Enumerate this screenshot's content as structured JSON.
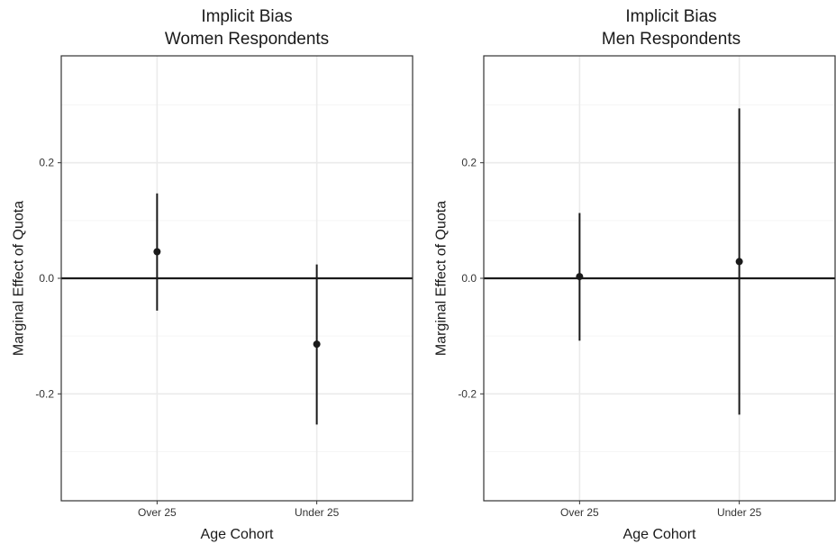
{
  "chart_data": [
    {
      "type": "scatter",
      "title_lines": [
        "Implicit Bias",
        "Women Respondents"
      ],
      "xlabel": "Age Cohort",
      "ylabel": "Marginal Effect of Quota",
      "categories": [
        "Over 25",
        "Under 25"
      ],
      "y_ticks": [
        -0.2,
        0.0,
        0.2
      ],
      "y_tick_labels": [
        "-0.2",
        "0.0",
        "0.2"
      ],
      "ylim": [
        -0.385,
        0.385
      ],
      "grid": true,
      "reference_line": 0.0,
      "points": [
        {
          "x": "Over 25",
          "y": 0.046,
          "lower": -0.056,
          "upper": 0.147
        },
        {
          "x": "Under 25",
          "y": -0.114,
          "lower": -0.253,
          "upper": 0.024
        }
      ]
    },
    {
      "type": "scatter",
      "title_lines": [
        "Implicit Bias",
        "Men Respondents"
      ],
      "xlabel": "Age Cohort",
      "ylabel": "Marginal Effect of Quota",
      "categories": [
        "Over 25",
        "Under 25"
      ],
      "y_ticks": [
        -0.2,
        0.0,
        0.2
      ],
      "y_tick_labels": [
        "-0.2",
        "0.0",
        "0.2"
      ],
      "ylim": [
        -0.385,
        0.385
      ],
      "grid": true,
      "reference_line": 0.0,
      "points": [
        {
          "x": "Over 25",
          "y": 0.003,
          "lower": -0.108,
          "upper": 0.113
        },
        {
          "x": "Under 25",
          "y": 0.029,
          "lower": -0.236,
          "upper": 0.294
        }
      ]
    }
  ],
  "colors": {
    "point": "#1a1a1a",
    "errorbar": "#1a1a1a",
    "refline": "#1a1a1a",
    "grid_major": "#ebebeb",
    "grid_minor": "#f5f5f5",
    "panel_border": "#333333"
  }
}
